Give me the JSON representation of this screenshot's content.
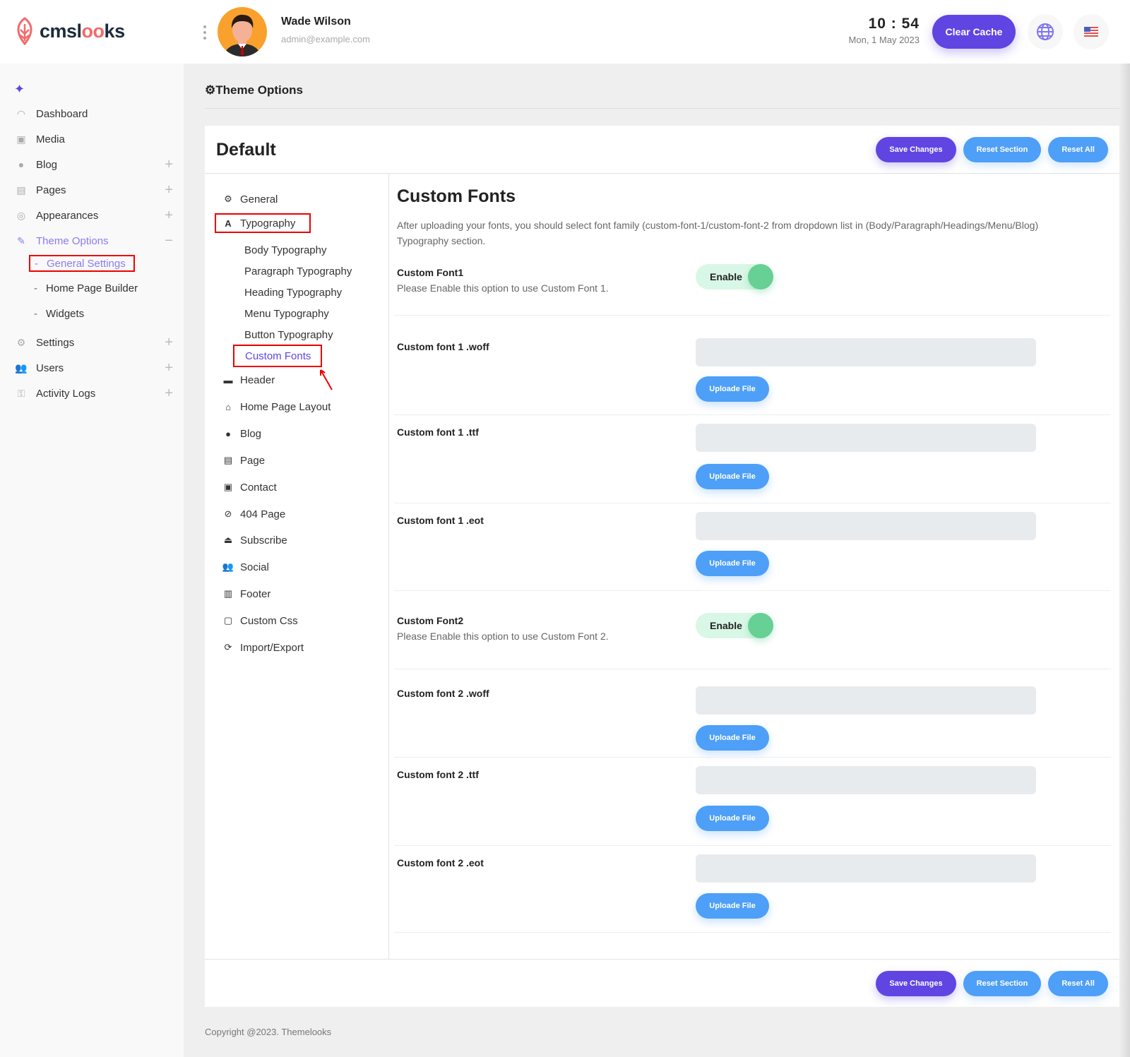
{
  "header": {
    "logo_text": "cmslooks",
    "user_name": "Wade Wilson",
    "user_email": "admin@example.com",
    "time": "10 : 54",
    "date": "Mon, 1 May 2023",
    "clear_cache": "Clear Cache"
  },
  "sidebar": {
    "items": [
      {
        "label": "Dashboard",
        "icon": "dashboard-icon"
      },
      {
        "label": "Media",
        "icon": "media-icon"
      },
      {
        "label": "Blog",
        "icon": "blog-icon",
        "expand": "+"
      },
      {
        "label": "Pages",
        "icon": "pages-icon",
        "expand": "+"
      },
      {
        "label": "Appearances",
        "icon": "appearances-icon",
        "expand": "+"
      },
      {
        "label": "Theme Options",
        "icon": "brush-icon",
        "expand": "−",
        "active": true
      },
      {
        "label": "Settings",
        "icon": "settings-icon",
        "expand": "+"
      },
      {
        "label": "Users",
        "icon": "users-icon",
        "expand": "+"
      },
      {
        "label": "Activity Logs",
        "icon": "key-icon",
        "expand": "+"
      }
    ],
    "sub_items": [
      "General Settings",
      "Home Page Builder",
      "Widgets"
    ]
  },
  "page": {
    "title": "Theme Options",
    "panel_title": "Default",
    "buttons": {
      "save": "Save Changes",
      "reset_section": "Reset Section",
      "reset_all": "Reset All"
    }
  },
  "leftnav": {
    "general": "General",
    "typography": "Typography",
    "typography_sub": [
      "Body Typography",
      "Paragraph Typography",
      "Heading Typography",
      "Menu Typography",
      "Button Typography",
      "Custom Fonts"
    ],
    "items": [
      "Header",
      "Home Page Layout",
      "Blog",
      "Page",
      "Contact",
      "404 Page",
      "Subscribe",
      "Social",
      "Footer",
      "Custom Css",
      "Import/Export"
    ]
  },
  "content": {
    "title": "Custom Fonts",
    "description": "After uploading your fonts, you should select font family (custom-font-1/custom-font-2 from dropdown list in (Body/Paragraph/Headings/Menu/Blog) Typography section.",
    "font1": {
      "label": "Custom Font1",
      "hint": "Please Enable this option to use Custom Font 1.",
      "toggle": "Enable",
      "enabled": true
    },
    "font2": {
      "label": "Custom Font2",
      "hint": "Please Enable this option to use Custom Font 2.",
      "toggle": "Enable",
      "enabled": true
    },
    "files": [
      "Custom font 1 .woff",
      "Custom font 1 .ttf",
      "Custom font 1 .eot",
      "Custom font 2 .woff",
      "Custom font 2 .ttf",
      "Custom font 2 .eot"
    ],
    "upload_label": "Uploade File"
  },
  "footer": {
    "copyright": "Copyright @2023. Themelooks"
  },
  "colors": {
    "primary": "#6045e2",
    "secondary": "#4e9ff7",
    "toggle_on": "#66d095",
    "highlight": "#e00000"
  }
}
